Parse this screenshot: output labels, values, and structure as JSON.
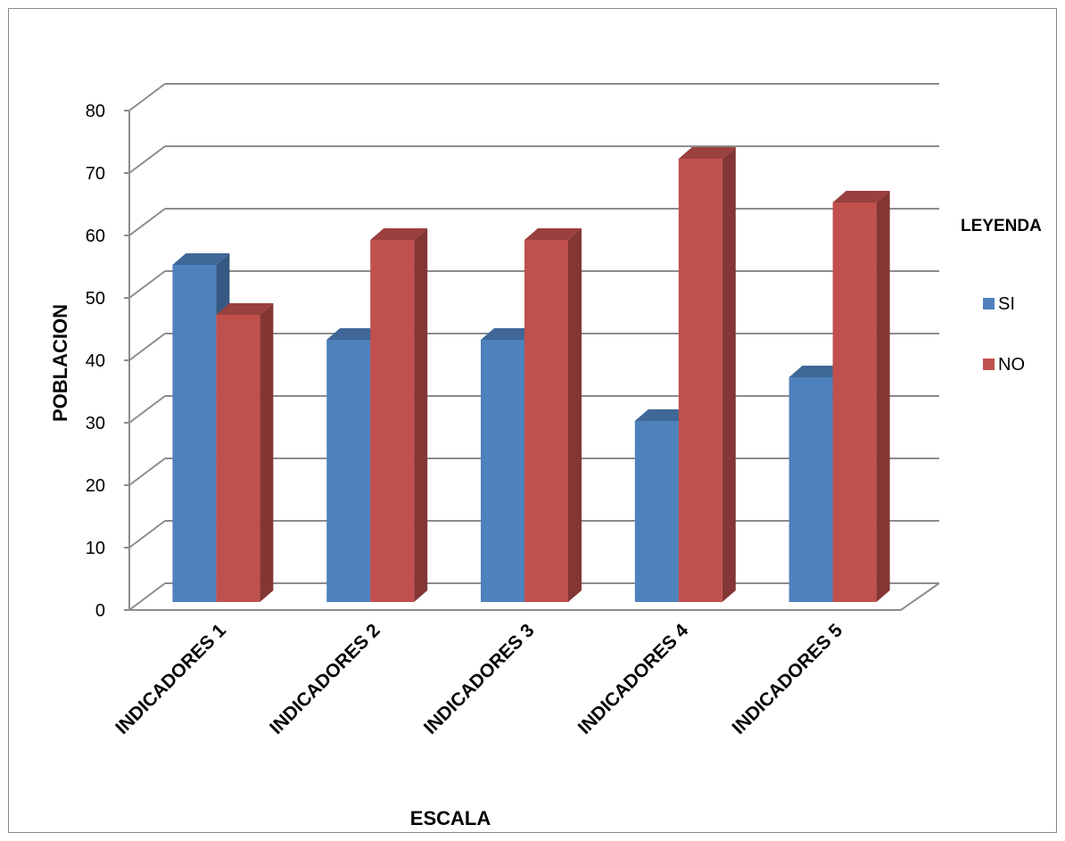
{
  "chart_data": {
    "type": "bar",
    "title": "",
    "xlabel": "ESCALA",
    "ylabel": "POBLACION",
    "categories": [
      "INDICADORES 1",
      "INDICADORES 2",
      "INDICADORES 3",
      "INDICADORES 4",
      "INDICADORES 5"
    ],
    "series": [
      {
        "name": "SI",
        "values": [
          54,
          42,
          42,
          29,
          36
        ],
        "color": "#4F81BD"
      },
      {
        "name": "NO",
        "values": [
          46,
          58,
          58,
          71,
          64
        ],
        "color": "#C0504D"
      }
    ],
    "ylim": [
      0,
      80
    ],
    "yticks": [
      "0",
      "10",
      "20",
      "30",
      "40",
      "50",
      "60",
      "70",
      "80"
    ],
    "grid": true,
    "style": "3d-clustered-column",
    "legend": {
      "title": "LEYENDA",
      "position": "right"
    }
  }
}
